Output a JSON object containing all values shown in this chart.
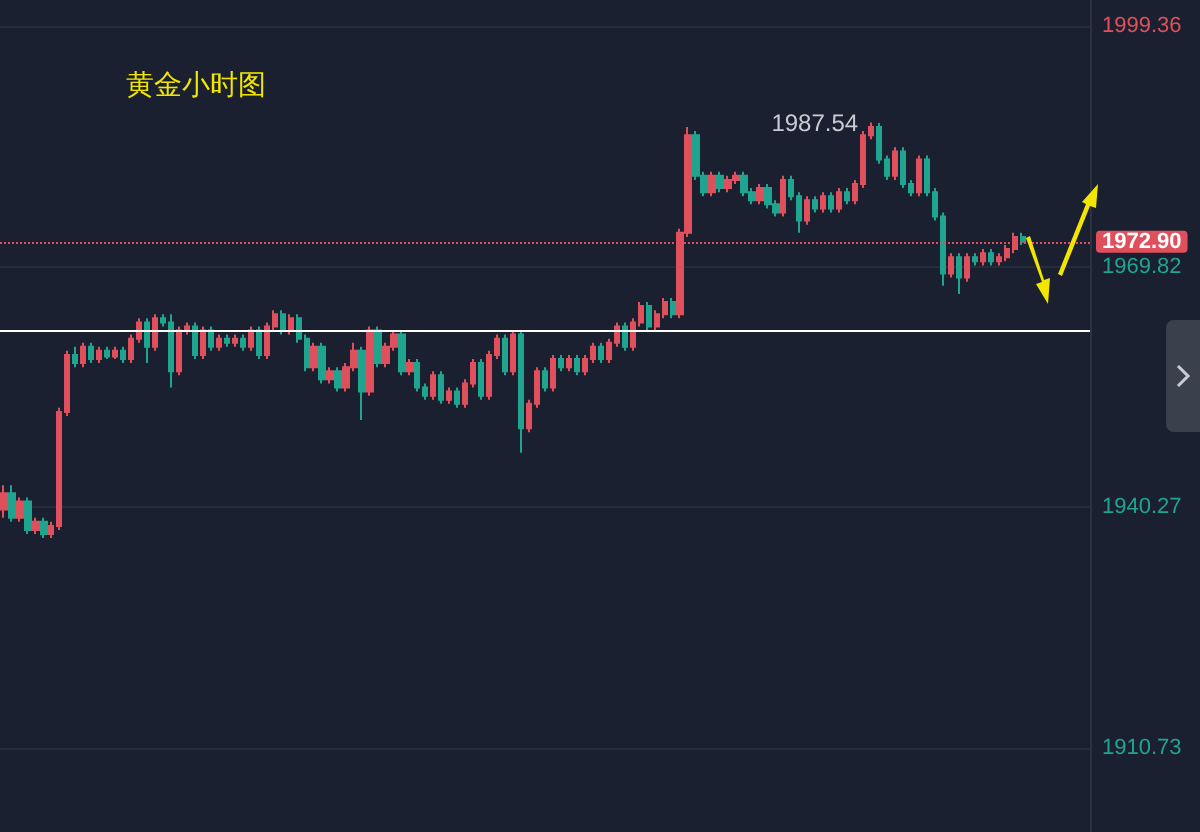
{
  "chart_data": {
    "type": "candlestick",
    "title": "黄金小时图",
    "categories": [
      null,
      null,
      null,
      null,
      null,
      null,
      null,
      null,
      null,
      null,
      null,
      null,
      null,
      null,
      null,
      null,
      null,
      null,
      null,
      null,
      null,
      null,
      null,
      null,
      null,
      null,
      null,
      null,
      null,
      null,
      null,
      null,
      null,
      null,
      null,
      null,
      null,
      null,
      null,
      null,
      null,
      null,
      null,
      null,
      null,
      null,
      null,
      null,
      null,
      null,
      null,
      null,
      null,
      null,
      null,
      null,
      null,
      null,
      null,
      null,
      null,
      null,
      null,
      null,
      null,
      null,
      null,
      null,
      null,
      null,
      null,
      null,
      null,
      null,
      null,
      null,
      null,
      null,
      null,
      null,
      null,
      null,
      null,
      null,
      null,
      null,
      null,
      null,
      null,
      null,
      null,
      null,
      null,
      null,
      null,
      null,
      null,
      null,
      null,
      null,
      null,
      null,
      null,
      null,
      null,
      null,
      null,
      null,
      null,
      null,
      null,
      null,
      null,
      null,
      null,
      null,
      null,
      null,
      null,
      null,
      null,
      null,
      null,
      null,
      null,
      null,
      null,
      null,
      null,
      null,
      null,
      null,
      null,
      null,
      null,
      null,
      null
    ],
    "ohlc": [
      [
        1940,
        1943,
        1939,
        1942
      ],
      [
        1942,
        1943,
        1938.5,
        1939
      ],
      [
        1939,
        1941.5,
        1938.5,
        1941
      ],
      [
        1941,
        1941.5,
        1937,
        1937.5
      ],
      [
        1937.5,
        1939,
        1937,
        1938.5
      ],
      [
        1938.5,
        1939,
        1936.5,
        1937
      ],
      [
        1937,
        1938.5,
        1936.5,
        1938
      ],
      [
        1938,
        1952.5,
        1937.5,
        1952
      ],
      [
        1952,
        1959.5,
        1951.5,
        1959
      ],
      [
        1959,
        1960,
        1957.5,
        1958
      ],
      [
        1958,
        1960.5,
        1957.5,
        1960
      ],
      [
        1960,
        1960.5,
        1958,
        1958.5
      ],
      [
        1958.5,
        1960,
        1958,
        1959.5
      ],
      [
        1959.5,
        1960,
        1958.5,
        1958.8
      ],
      [
        1958.8,
        1960,
        1958.5,
        1959.5
      ],
      [
        1959.5,
        1960,
        1958,
        1958.5
      ],
      [
        1958.5,
        1961.5,
        1958,
        1961
      ],
      [
        1961,
        1963.5,
        1960.5,
        1963
      ],
      [
        1963,
        1963.5,
        1958,
        1960
      ],
      [
        1960,
        1964,
        1959.5,
        1963.5
      ],
      [
        1963.5,
        1964,
        1962.5,
        1963
      ],
      [
        1963,
        1964,
        1955,
        1957
      ],
      [
        1957,
        1962.5,
        1956.5,
        1962
      ],
      [
        1962,
        1963,
        1961.5,
        1962.5
      ],
      [
        1962.5,
        1963,
        1958.5,
        1959
      ],
      [
        1959,
        1962.5,
        1958.5,
        1962
      ],
      [
        1962,
        1962.5,
        1959.5,
        1960
      ],
      [
        1960,
        1961.5,
        1959.5,
        1961
      ],
      [
        1961,
        1961.5,
        1960,
        1960.5
      ],
      [
        1960.5,
        1961.5,
        1960,
        1961
      ],
      [
        1961,
        1961.5,
        1959.5,
        1960
      ],
      [
        1960,
        1962.5,
        1959.5,
        1962
      ],
      [
        1962,
        1962.5,
        1958.5,
        1959
      ],
      [
        1959,
        1963,
        1958.5,
        1962.5
      ],
      [
        1962.5,
        1964.5,
        1962,
        1964
      ],
      [
        1964,
        1964.5,
        1961.5,
        1962
      ],
      [
        1962,
        1964,
        1961.5,
        1963.5
      ],
      [
        1963.5,
        1964,
        1960.5,
        1961
      ],
      [
        1961,
        1961.5,
        1957,
        1957.5
      ],
      [
        1957.5,
        1960.5,
        1957,
        1960
      ],
      [
        1960,
        1960.5,
        1955.5,
        1956
      ],
      [
        1956,
        1957.5,
        1955.5,
        1957
      ],
      [
        1957,
        1957.5,
        1954.5,
        1955
      ],
      [
        1955,
        1958,
        1954.5,
        1957.5
      ],
      [
        1957.5,
        1960.5,
        1957,
        1959.5
      ],
      [
        1959.5,
        1960,
        1951,
        1954.5
      ],
      [
        1954.5,
        1962.5,
        1954,
        1962
      ],
      [
        1962,
        1962.5,
        1957.5,
        1958
      ],
      [
        1958,
        1960.5,
        1957.5,
        1960
      ],
      [
        1960,
        1962,
        1959.5,
        1961.5
      ],
      [
        1961.5,
        1962,
        1956.5,
        1957
      ],
      [
        1957,
        1958.5,
        1956.5,
        1958
      ],
      [
        1958,
        1958.5,
        1954.5,
        1955
      ],
      [
        1955,
        1955.5,
        1953.5,
        1954
      ],
      [
        1954,
        1957,
        1953.5,
        1956.5
      ],
      [
        1956.5,
        1957,
        1953,
        1953.5
      ],
      [
        1953.5,
        1955,
        1953,
        1954.5
      ],
      [
        1954.5,
        1955,
        1952.5,
        1953
      ],
      [
        1953,
        1956,
        1952.5,
        1955.5
      ],
      [
        1955.5,
        1958.5,
        1955,
        1958
      ],
      [
        1958,
        1958.5,
        1953.5,
        1954
      ],
      [
        1954,
        1959.5,
        1953.5,
        1959
      ],
      [
        1959,
        1961.5,
        1958.5,
        1961
      ],
      [
        1961,
        1961.5,
        1956.5,
        1957
      ],
      [
        1957,
        1962,
        1956.5,
        1961.5
      ],
      [
        1961.5,
        1962,
        1947,
        1950
      ],
      [
        1950,
        1953.5,
        1949.5,
        1953
      ],
      [
        1953,
        1957.5,
        1952.5,
        1957
      ],
      [
        1957,
        1957.5,
        1954.5,
        1955
      ],
      [
        1955,
        1959,
        1954.5,
        1958.5
      ],
      [
        1958.5,
        1959,
        1957,
        1957.5
      ],
      [
        1957.5,
        1959,
        1957,
        1958.5
      ],
      [
        1958.5,
        1959,
        1956.5,
        1957
      ],
      [
        1957,
        1959,
        1956.5,
        1958.5
      ],
      [
        1958.5,
        1960.5,
        1958,
        1960
      ],
      [
        1960,
        1960.5,
        1958,
        1958.5
      ],
      [
        1958.5,
        1961,
        1958,
        1960.5
      ],
      [
        1960.5,
        1963,
        1960,
        1962.5
      ],
      [
        1962.5,
        1963,
        1959.5,
        1960
      ],
      [
        1960,
        1963.5,
        1959.5,
        1963
      ],
      [
        1963,
        1965.5,
        1962.5,
        1965
      ],
      [
        1965,
        1965.5,
        1962,
        1962.5
      ],
      [
        1962.5,
        1964.5,
        1962,
        1964
      ],
      [
        1964,
        1966,
        1963.5,
        1965.5
      ],
      [
        1965.5,
        1966,
        1963.5,
        1964
      ],
      [
        1964,
        1974.5,
        1963.5,
        1974
      ],
      [
        1974,
        1987,
        1973.5,
        1986
      ],
      [
        1986,
        1986.5,
        1980.5,
        1981
      ],
      [
        1981,
        1981.5,
        1978.5,
        1979
      ],
      [
        1979,
        1981.5,
        1978.5,
        1981
      ],
      [
        1981,
        1981.5,
        1979,
        1979.5
      ],
      [
        1979.5,
        1981,
        1979,
        1980.5
      ],
      [
        1980.5,
        1981.5,
        1980,
        1981
      ],
      [
        1981,
        1981.5,
        1978.5,
        1979
      ],
      [
        1979,
        1979.5,
        1977.5,
        1978
      ],
      [
        1978,
        1980,
        1977.5,
        1979.5
      ],
      [
        1979.5,
        1980,
        1977,
        1977.5
      ],
      [
        1977.5,
        1978,
        1976,
        1976.5
      ],
      [
        1976.5,
        1981,
        1976,
        1980.5
      ],
      [
        1980.5,
        1981,
        1978,
        1978.5
      ],
      [
        1978.5,
        1979,
        1974,
        1975.5
      ],
      [
        1975.5,
        1978.5,
        1975,
        1978
      ],
      [
        1978,
        1978.5,
        1976.5,
        1977
      ],
      [
        1977,
        1979,
        1976.5,
        1978.5
      ],
      [
        1978.5,
        1979,
        1976.5,
        1977
      ],
      [
        1977,
        1979.5,
        1976.5,
        1979
      ],
      [
        1979,
        1979.5,
        1977.5,
        1978
      ],
      [
        1978,
        1980.5,
        1977.5,
        1980
      ],
      [
        1980,
        1986.5,
        1979.5,
        1986
      ],
      [
        1986,
        1987.54,
        1985.5,
        1987
      ],
      [
        1987,
        1987.5,
        1982.5,
        1983
      ],
      [
        1983,
        1983.5,
        1980.5,
        1981
      ],
      [
        1981,
        1984.5,
        1980.5,
        1984
      ],
      [
        1984,
        1984.5,
        1979.5,
        1980
      ],
      [
        1980,
        1980.5,
        1978.5,
        1979
      ],
      [
        1979,
        1983.5,
        1978.5,
        1983
      ],
      [
        1983,
        1983.5,
        1978.5,
        1979
      ],
      [
        1979,
        1979.5,
        1975.5,
        1976
      ],
      [
        1976,
        1976.5,
        1967.5,
        1969
      ],
      [
        1969,
        1971.5,
        1968.5,
        1971
      ],
      [
        1971,
        1971.5,
        1966.5,
        1968.5
      ],
      [
        1968.5,
        1971.5,
        1968,
        1971
      ],
      [
        1971,
        1971.5,
        1970,
        1970.5
      ],
      [
        1970.5,
        1972,
        1970,
        1971.5
      ],
      [
        1971.5,
        1972,
        1970,
        1970.5
      ],
      [
        1970.5,
        1971.5,
        1970,
        1971
      ],
      [
        1971,
        1972.5,
        1970.5,
        1972
      ],
      [
        1972,
        1974,
        1971.5,
        1973.5
      ],
      [
        1973.5,
        1974,
        1972.5,
        1972.9
      ],
      null,
      null,
      null,
      null,
      null,
      null,
      null,
      null
    ],
    "ylim": [
      1900.4,
      2002.6
    ],
    "yticks": [
      1910.73,
      1940.27,
      1969.82,
      1999.36
    ],
    "grid": "y",
    "tick_labels": "y",
    "ref_lines": [
      {
        "axis": "y",
        "value": 1972.9,
        "label": "1972.90",
        "color": "#e0505c",
        "line_style": "dotted"
      },
      {
        "axis": "y",
        "value": 1962,
        "color": "#ffffff",
        "line_style": "solid"
      }
    ],
    "annotations": [
      "1987.54"
    ]
  }
}
